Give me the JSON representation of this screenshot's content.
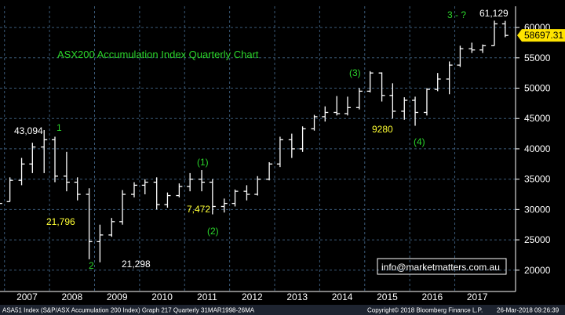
{
  "chart_data": {
    "type": "ohlc",
    "title": "ASX200 Accumulation Index Quarterly Chart",
    "ylim": [
      17000,
      63500
    ],
    "yticks": [
      20000,
      25000,
      30000,
      35000,
      40000,
      45000,
      50000,
      55000,
      60000
    ],
    "ytick_labels": [
      "20000",
      "25000",
      "30000",
      "35000",
      "40000",
      "45000",
      "50000",
      "55000",
      "60000"
    ],
    "x_start": 2006.9,
    "x_end": 2018.35,
    "xtick_labels": [
      "2007",
      "2008",
      "2009",
      "2010",
      "2011",
      "2012",
      "2013",
      "2014",
      "2015",
      "2016",
      "2017"
    ],
    "last_price": 58697.31,
    "last_price_label": "58697.31",
    "bars": [
      {
        "t": 2006.88,
        "o": 30000,
        "h": 31200,
        "l": 29000,
        "c": 31000
      },
      {
        "t": 2007.12,
        "o": 31300,
        "h": 35300,
        "l": 31300,
        "c": 34800
      },
      {
        "t": 2007.38,
        "o": 34800,
        "h": 38500,
        "l": 34000,
        "c": 37500
      },
      {
        "t": 2007.62,
        "o": 37500,
        "h": 41000,
        "l": 36000,
        "c": 40300
      },
      {
        "t": 2007.88,
        "o": 40300,
        "h": 43094,
        "l": 36000,
        "c": 41500
      },
      {
        "t": 2008.12,
        "o": 41500,
        "h": 42000,
        "l": 34500,
        "c": 35500
      },
      {
        "t": 2008.38,
        "o": 35500,
        "h": 39500,
        "l": 33000,
        "c": 34500
      },
      {
        "t": 2008.62,
        "o": 34500,
        "h": 35300,
        "l": 31500,
        "c": 32500
      },
      {
        "t": 2008.88,
        "o": 32500,
        "h": 33500,
        "l": 21796,
        "c": 24700
      },
      {
        "t": 2009.12,
        "o": 24700,
        "h": 27500,
        "l": 21298,
        "c": 25800
      },
      {
        "t": 2009.38,
        "o": 25800,
        "h": 28600,
        "l": 25500,
        "c": 28000
      },
      {
        "t": 2009.62,
        "o": 28000,
        "h": 33200,
        "l": 27500,
        "c": 32500
      },
      {
        "t": 2009.88,
        "o": 32500,
        "h": 34500,
        "l": 32000,
        "c": 34000
      },
      {
        "t": 2010.12,
        "o": 34000,
        "h": 35000,
        "l": 32500,
        "c": 34500
      },
      {
        "t": 2010.38,
        "o": 34500,
        "h": 35300,
        "l": 30000,
        "c": 30800
      },
      {
        "t": 2010.62,
        "o": 30800,
        "h": 32800,
        "l": 30300,
        "c": 32300
      },
      {
        "t": 2010.88,
        "o": 32300,
        "h": 34300,
        "l": 32000,
        "c": 33800
      },
      {
        "t": 2011.12,
        "o": 33800,
        "h": 36000,
        "l": 33000,
        "c": 35000
      },
      {
        "t": 2011.38,
        "o": 35000,
        "h": 36500,
        "l": 33000,
        "c": 34500
      },
      {
        "t": 2011.62,
        "o": 34500,
        "h": 35000,
        "l": 29200,
        "c": 30500
      },
      {
        "t": 2011.88,
        "o": 30500,
        "h": 31800,
        "l": 29500,
        "c": 31000
      },
      {
        "t": 2012.12,
        "o": 31000,
        "h": 33300,
        "l": 30500,
        "c": 33000
      },
      {
        "t": 2012.38,
        "o": 33000,
        "h": 34000,
        "l": 31500,
        "c": 32500
      },
      {
        "t": 2012.62,
        "o": 32500,
        "h": 35500,
        "l": 32300,
        "c": 35000
      },
      {
        "t": 2012.88,
        "o": 35000,
        "h": 37800,
        "l": 34800,
        "c": 37500
      },
      {
        "t": 2013.12,
        "o": 37500,
        "h": 42000,
        "l": 37000,
        "c": 41500
      },
      {
        "t": 2013.38,
        "o": 41500,
        "h": 42500,
        "l": 38500,
        "c": 40000
      },
      {
        "t": 2013.62,
        "o": 40000,
        "h": 43700,
        "l": 39500,
        "c": 43300
      },
      {
        "t": 2013.88,
        "o": 43300,
        "h": 45600,
        "l": 43000,
        "c": 45300
      },
      {
        "t": 2014.12,
        "o": 45300,
        "h": 47000,
        "l": 44500,
        "c": 46000
      },
      {
        "t": 2014.38,
        "o": 46000,
        "h": 48700,
        "l": 45500,
        "c": 45800
      },
      {
        "t": 2014.62,
        "o": 45800,
        "h": 48600,
        "l": 45500,
        "c": 46800
      },
      {
        "t": 2014.88,
        "o": 46800,
        "h": 50000,
        "l": 46500,
        "c": 49500
      },
      {
        "t": 2015.12,
        "o": 49500,
        "h": 52800,
        "l": 49300,
        "c": 52500
      },
      {
        "t": 2015.38,
        "o": 52500,
        "h": 52600,
        "l": 47800,
        "c": 48800
      },
      {
        "t": 2015.62,
        "o": 48800,
        "h": 50800,
        "l": 45000,
        "c": 46200
      },
      {
        "t": 2015.88,
        "o": 46200,
        "h": 48500,
        "l": 44800,
        "c": 48000
      },
      {
        "t": 2016.12,
        "o": 48000,
        "h": 48600,
        "l": 43800,
        "c": 46000
      },
      {
        "t": 2016.38,
        "o": 46000,
        "h": 50000,
        "l": 45500,
        "c": 49800
      },
      {
        "t": 2016.62,
        "o": 49800,
        "h": 52500,
        "l": 49500,
        "c": 51500
      },
      {
        "t": 2016.88,
        "o": 51500,
        "h": 54400,
        "l": 49000,
        "c": 53800
      },
      {
        "t": 2017.12,
        "o": 53800,
        "h": 57000,
        "l": 53500,
        "c": 56500
      },
      {
        "t": 2017.38,
        "o": 56500,
        "h": 57500,
        "l": 55800,
        "c": 56300
      },
      {
        "t": 2017.62,
        "o": 56300,
        "h": 57200,
        "l": 55800,
        "c": 57000
      },
      {
        "t": 2017.88,
        "o": 57000,
        "h": 61129,
        "l": 57000,
        "c": 60600
      },
      {
        "t": 2018.12,
        "o": 60600,
        "h": 61100,
        "l": 58400,
        "c": 58697
      }
    ],
    "annotations": [
      {
        "id": "label-43094",
        "text": "43,094",
        "color": "#ffffff"
      },
      {
        "id": "label-wave-1-top",
        "text": "1",
        "color": "#2bd52b"
      },
      {
        "id": "label-21796",
        "text": "21,796",
        "color": "#ffff33"
      },
      {
        "id": "label-wave-2-bottom",
        "text": "2",
        "color": "#2bd52b"
      },
      {
        "id": "label-21298",
        "text": "21,298",
        "color": "#ffffff"
      },
      {
        "id": "label-wave-(1)",
        "text": "(1)",
        "color": "#2bd52b"
      },
      {
        "id": "label-7472",
        "text": "7,472",
        "color": "#ffff33"
      },
      {
        "id": "label-wave-(2)",
        "text": "(2)",
        "color": "#2bd52b"
      },
      {
        "id": "label-wave-(3)",
        "text": "(3)",
        "color": "#2bd52b"
      },
      {
        "id": "label-9280",
        "text": "9280",
        "color": "#ffff33"
      },
      {
        "id": "label-wave-(4)",
        "text": "(4)",
        "color": "#2bd52b"
      },
      {
        "id": "label-wave-3-question",
        "text": "3 - ?",
        "color": "#2bd52b"
      },
      {
        "id": "label-61129",
        "text": "61,129",
        "color": "#ffffff"
      }
    ],
    "colors": {
      "background": "#000000",
      "bars": "#ffffff",
      "grid": "#3a5a78",
      "title": "#2bd52b",
      "price_tag_bg": "#ffe400",
      "price_tag_text": "#000000",
      "footer_bg": "#1e2430",
      "info_box_text": "#ffffff"
    }
  },
  "info_box": "info@marketmatters.com.au",
  "footer": {
    "left": "ASA51 Index (S&P/ASX Accumulation 200 Index) Graph 217  Quarterly 31MAR1998-26MA",
    "copyright": "Copyright© 2018 Bloomberg Finance L.P.",
    "timestamp": "26-Mar-2018 09:26:39"
  }
}
